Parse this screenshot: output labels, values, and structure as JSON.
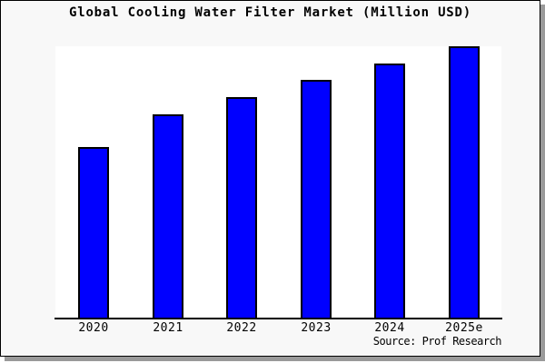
{
  "title": "Global Cooling Water Filter Market (Million USD)",
  "source_note": "Source: Prof Research",
  "colors": {
    "bar": "#0000ff",
    "bar_border": "#000000",
    "card_background": "#f8f8f8",
    "plot_background": "#ffffff",
    "axis": "#000000",
    "text": "#000000",
    "shadow": "#9a9a9a"
  },
  "chart_data": {
    "type": "bar",
    "title": "Global Cooling Water Filter Market (Million USD)",
    "categories": [
      "2020",
      "2021",
      "2022",
      "2023",
      "2024",
      "2025e"
    ],
    "values": [
      62.9,
      74.9,
      81.3,
      87.6,
      93.7,
      100
    ],
    "value_note": "no y-axis shown; values estimated relative to 2025e = 100",
    "xlabel": "",
    "ylabel": "",
    "ylim": [
      0,
      100
    ],
    "grid": false,
    "legend": false,
    "y_axis_visible": false,
    "source": "Source: Prof Research"
  }
}
